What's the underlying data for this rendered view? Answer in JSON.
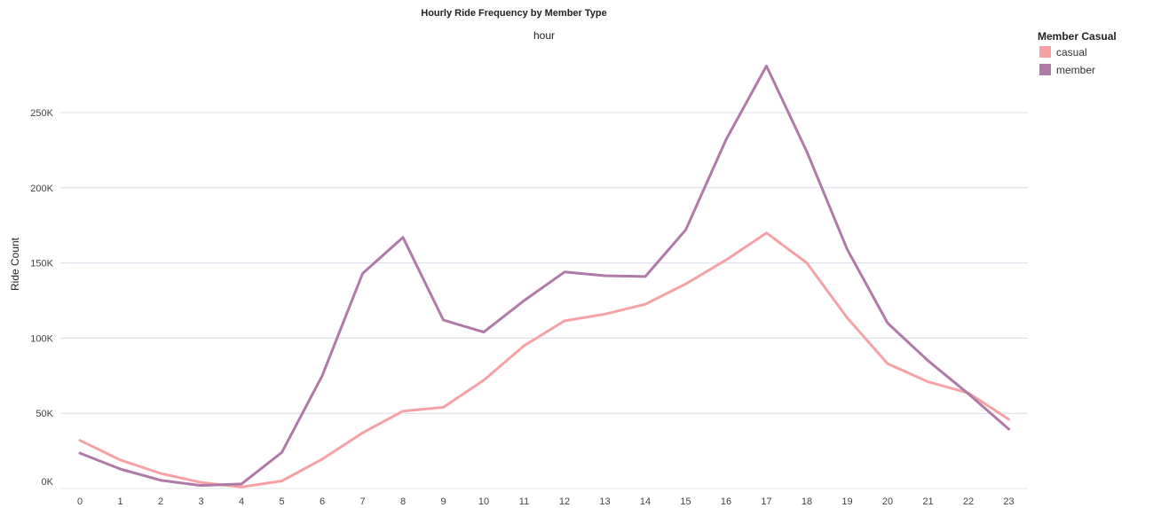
{
  "chart_data": {
    "type": "line",
    "title": "Hourly Ride Frequency by Member Type",
    "top_axis_label": "hour",
    "xlabel": "",
    "ylabel": "Ride Count",
    "x": [
      0,
      1,
      2,
      3,
      4,
      5,
      6,
      7,
      8,
      9,
      10,
      11,
      12,
      13,
      14,
      15,
      16,
      17,
      18,
      19,
      20,
      21,
      22,
      23
    ],
    "x_tick_labels": [
      "0",
      "1",
      "2",
      "3",
      "4",
      "5",
      "6",
      "7",
      "8",
      "9",
      "10",
      "11",
      "12",
      "13",
      "14",
      "15",
      "16",
      "17",
      "18",
      "19",
      "20",
      "21",
      "22",
      "23"
    ],
    "ylim": [
      0,
      290000
    ],
    "y_ticks": [
      0,
      50000,
      100000,
      150000,
      200000,
      250000
    ],
    "y_tick_labels": [
      "0K",
      "50K",
      "100K",
      "150K",
      "200K",
      "250K"
    ],
    "grid": true,
    "legend": {
      "title": "Member Casual",
      "placement": "top-right"
    },
    "series": [
      {
        "name": "casual",
        "color": "#f7a1a7",
        "values": [
          32000,
          19000,
          10000,
          4000,
          1000,
          5000,
          19500,
          37000,
          51500,
          54000,
          72000,
          95000,
          111500,
          116000,
          122500,
          136000,
          152000,
          170000,
          150000,
          113500,
          83000,
          71000,
          63500,
          46000
        ]
      },
      {
        "name": "member",
        "color": "#b07aa8",
        "values": [
          23500,
          13000,
          5500,
          2000,
          3000,
          24000,
          75000,
          143000,
          167000,
          112000,
          104000,
          125000,
          144000,
          141500,
          141000,
          172000,
          232000,
          281000,
          224000,
          159000,
          110000,
          85000,
          63000,
          39500
        ]
      }
    ]
  }
}
